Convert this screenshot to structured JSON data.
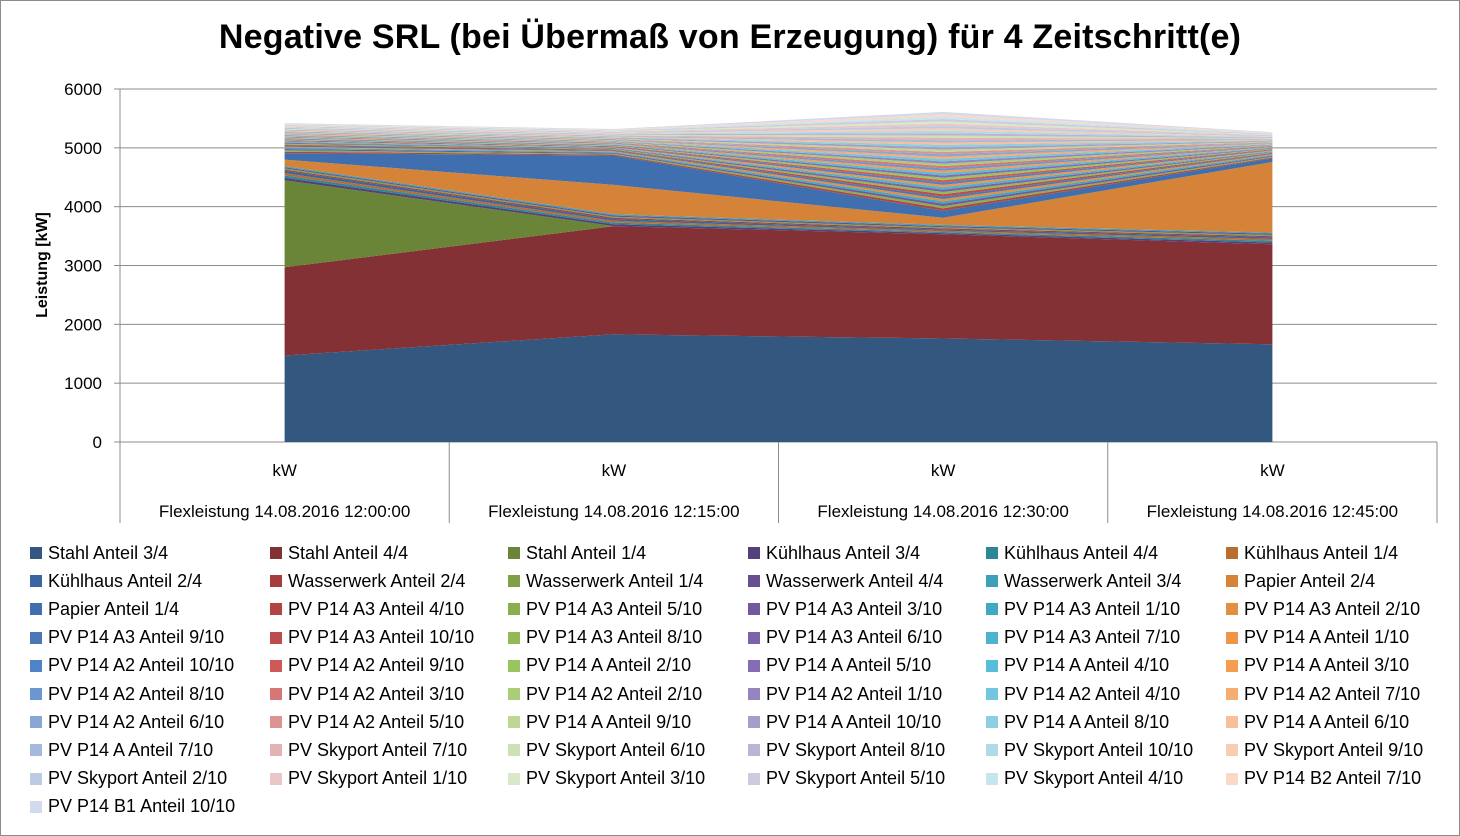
{
  "chart_data": {
    "type": "area",
    "stacked": true,
    "title": "Negative SRL (bei Übermaß von Erzeugung) für 4 Zeitschritt(e)",
    "ylabel": "Leistung [kW]",
    "ylim": [
      0,
      6000
    ],
    "yticks": [
      0,
      1000,
      2000,
      3000,
      4000,
      5000,
      6000
    ],
    "grid": true,
    "legend_position": "bottom",
    "categories": [
      {
        "unit": "kW",
        "label": "Flexleistung 14.08.2016 12:00:00"
      },
      {
        "unit": "kW",
        "label": "Flexleistung 14.08.2016 12:15:00"
      },
      {
        "unit": "kW",
        "label": "Flexleistung 14.08.2016 12:30:00"
      },
      {
        "unit": "kW",
        "label": "Flexleistung 14.08.2016 12:45:00"
      }
    ],
    "series": [
      {
        "name": "Stahl Anteil 3/4",
        "color": "#34577f",
        "values": [
          1470,
          1830,
          1760,
          1660
        ]
      },
      {
        "name": "Stahl Anteil 4/4",
        "color": "#843135",
        "values": [
          1500,
          1840,
          1770,
          1700
        ]
      },
      {
        "name": "Stahl Anteil 1/4",
        "color": "#6a8538",
        "values": [
          1480,
          0,
          0,
          0
        ]
      },
      {
        "name": "Kühlhaus Anteil 3/4",
        "color": "#54407a",
        "values": [
          40,
          30,
          20,
          30
        ]
      },
      {
        "name": "Kühlhaus Anteil 4/4",
        "color": "#2e8699",
        "values": [
          40,
          30,
          20,
          30
        ]
      },
      {
        "name": "Kühlhaus Anteil 1/4",
        "color": "#b76e30",
        "values": [
          40,
          30,
          20,
          30
        ]
      },
      {
        "name": "Kühlhaus Anteil 2/4",
        "color": "#3a65a0",
        "values": [
          40,
          30,
          20,
          30
        ]
      },
      {
        "name": "Wasserwerk Anteil 2/4",
        "color": "#a53d3f",
        "values": [
          20,
          20,
          20,
          20
        ]
      },
      {
        "name": "Wasserwerk Anteil 1/4",
        "color": "#80a046",
        "values": [
          20,
          20,
          20,
          20
        ]
      },
      {
        "name": "Wasserwerk Anteil 4/4",
        "color": "#674f93",
        "values": [
          20,
          20,
          20,
          20
        ]
      },
      {
        "name": "Wasserwerk Anteil 3/4",
        "color": "#3ba0b8",
        "values": [
          20,
          20,
          20,
          20
        ]
      },
      {
        "name": "Papier Anteil 2/4",
        "color": "#d6833a",
        "values": [
          110,
          500,
          120,
          1200
        ]
      },
      {
        "name": "Papier Anteil 1/4",
        "color": "#3f6fae",
        "values": [
          110,
          500,
          120,
          60
        ]
      },
      {
        "name": "PV P14 A3 Anteil 4/10",
        "color": "#b04544",
        "values": [
          25,
          15,
          40,
          15
        ]
      },
      {
        "name": "PV P14 A3 Anteil 5/10",
        "color": "#8aad4d",
        "values": [
          25,
          15,
          40,
          15
        ]
      },
      {
        "name": "PV P14 A3 Anteil 3/10",
        "color": "#71589f",
        "values": [
          20,
          15,
          40,
          15
        ]
      },
      {
        "name": "PV P14 A3 Anteil 1/10",
        "color": "#40aac5",
        "values": [
          20,
          15,
          40,
          15
        ]
      },
      {
        "name": "PV P14 A3 Anteil 2/10",
        "color": "#e38e41",
        "values": [
          20,
          15,
          40,
          15
        ]
      },
      {
        "name": "PV P14 A3 Anteil 9/10",
        "color": "#4a78b6",
        "values": [
          20,
          15,
          40,
          10
        ]
      },
      {
        "name": "PV P14 A3 Anteil 10/10",
        "color": "#bb4e4c",
        "values": [
          15,
          10,
          40,
          10
        ]
      },
      {
        "name": "PV P14 A3 Anteil 8/10",
        "color": "#93b855",
        "values": [
          15,
          10,
          40,
          10
        ]
      },
      {
        "name": "PV P14 A3 Anteil 6/10",
        "color": "#7b63a9",
        "values": [
          15,
          10,
          40,
          10
        ]
      },
      {
        "name": "PV P14 A3 Anteil 7/10",
        "color": "#4db3cd",
        "values": [
          15,
          10,
          40,
          10
        ]
      },
      {
        "name": "PV P14 A Anteil 1/10",
        "color": "#ee9645",
        "values": [
          10,
          10,
          40,
          10
        ]
      },
      {
        "name": "PV P14 A2 Anteil 10/10",
        "color": "#4f82c6",
        "values": [
          10,
          10,
          40,
          10
        ]
      },
      {
        "name": "PV P14 A2 Anteil 9/10",
        "color": "#cd5a57",
        "values": [
          10,
          10,
          40,
          10
        ]
      },
      {
        "name": "PV P14 A Anteil 2/10",
        "color": "#9ac45d",
        "values": [
          10,
          10,
          40,
          10
        ]
      },
      {
        "name": "PV P14 A Anteil 5/10",
        "color": "#846db5",
        "values": [
          10,
          10,
          40,
          10
        ]
      },
      {
        "name": "PV P14 A Anteil 4/10",
        "color": "#58bdd6",
        "values": [
          10,
          10,
          40,
          10
        ]
      },
      {
        "name": "PV P14 A Anteil 3/10",
        "color": "#f49d52",
        "values": [
          10,
          10,
          40,
          10
        ]
      },
      {
        "name": "PV P14 A2 Anteil 8/10",
        "color": "#6b96d0",
        "values": [
          10,
          10,
          40,
          10
        ]
      },
      {
        "name": "PV P14 A2 Anteil 3/10",
        "color": "#d67675",
        "values": [
          10,
          10,
          40,
          10
        ]
      },
      {
        "name": "PV P14 A2 Anteil 2/10",
        "color": "#aacd77",
        "values": [
          10,
          10,
          40,
          10
        ]
      },
      {
        "name": "PV P14 A2 Anteil 1/10",
        "color": "#9584c0",
        "values": [
          10,
          10,
          40,
          10
        ]
      },
      {
        "name": "PV P14 A2 Anteil 4/10",
        "color": "#72c6dd",
        "values": [
          10,
          10,
          40,
          10
        ]
      },
      {
        "name": "PV P14 A2 Anteil 7/10",
        "color": "#f6ad72",
        "values": [
          10,
          10,
          40,
          10
        ]
      },
      {
        "name": "PV P14 A2 Anteil 6/10",
        "color": "#89a7d5",
        "values": [
          10,
          10,
          40,
          10
        ]
      },
      {
        "name": "PV P14 A2 Anteil 5/10",
        "color": "#dc9493",
        "values": [
          10,
          10,
          40,
          10
        ]
      },
      {
        "name": "PV P14 A Anteil 9/10",
        "color": "#bed796",
        "values": [
          10,
          10,
          40,
          10
        ]
      },
      {
        "name": "PV P14 A Anteil 10/10",
        "color": "#a89dc8",
        "values": [
          10,
          10,
          40,
          10
        ]
      },
      {
        "name": "PV P14 A Anteil 8/10",
        "color": "#8ccfe0",
        "values": [
          10,
          10,
          40,
          10
        ]
      },
      {
        "name": "PV P14 A Anteil 6/10",
        "color": "#f8bf98",
        "values": [
          10,
          10,
          40,
          10
        ]
      },
      {
        "name": "PV P14 A Anteil 7/10",
        "color": "#a5b9dc",
        "values": [
          10,
          10,
          40,
          10
        ]
      },
      {
        "name": "PV Skyport Anteil 7/10",
        "color": "#e2b3b2",
        "values": [
          10,
          10,
          40,
          10
        ]
      },
      {
        "name": "PV Skyport Anteil 6/10",
        "color": "#cde1b4",
        "values": [
          10,
          10,
          40,
          10
        ]
      },
      {
        "name": "PV Skyport Anteil 8/10",
        "color": "#bcb4d4",
        "values": [
          10,
          10,
          40,
          10
        ]
      },
      {
        "name": "PV Skyport Anteil 10/10",
        "color": "#afdbe8",
        "values": [
          10,
          10,
          40,
          10
        ]
      },
      {
        "name": "PV Skyport Anteil 9/10",
        "color": "#f9cdb4",
        "values": [
          10,
          10,
          40,
          10
        ]
      },
      {
        "name": "PV Skyport Anteil 2/10",
        "color": "#bccbe4",
        "values": [
          10,
          10,
          40,
          10
        ]
      },
      {
        "name": "PV Skyport Anteil 1/10",
        "color": "#e8c7c6",
        "values": [
          10,
          10,
          40,
          10
        ]
      },
      {
        "name": "PV Skyport Anteil 3/10",
        "color": "#d9e8c8",
        "values": [
          10,
          10,
          40,
          10
        ]
      },
      {
        "name": "PV Skyport Anteil 5/10",
        "color": "#cfcadf",
        "values": [
          10,
          10,
          40,
          10
        ]
      },
      {
        "name": "PV Skyport Anteil 4/10",
        "color": "#c7e5ee",
        "values": [
          10,
          10,
          40,
          10
        ]
      },
      {
        "name": "PV P14 B2 Anteil 7/10",
        "color": "#fbd9c6",
        "values": [
          10,
          10,
          40,
          10
        ]
      },
      {
        "name": "PV P14 B1 Anteil 10/10",
        "color": "#d1dbec",
        "values": [
          10,
          10,
          40,
          10
        ]
      }
    ]
  }
}
